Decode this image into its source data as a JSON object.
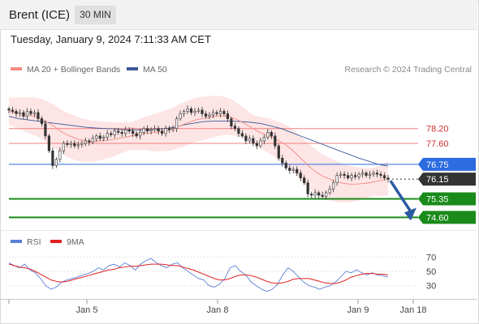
{
  "header": {
    "title": "Brent (ICE)",
    "timeframe": "30 MIN"
  },
  "datetime": "Tuesday, January 9, 2024 7:11:33 AM CET",
  "legend": {
    "ma20": {
      "label": "MA 20 + Bollinger Bands",
      "color": "#f28b82"
    },
    "ma50": {
      "label": "MA 50",
      "color": "#3b5998"
    }
  },
  "credit": "Research © 2024 Trading Central",
  "rsi_legend": {
    "rsi": {
      "label": "RSI",
      "color": "#5b7fd6"
    },
    "ma9": {
      "label": "9MA",
      "color": "#e02020"
    }
  },
  "chart_data": [
    {
      "type": "candlestick",
      "x_ticks": [
        "Jan 5",
        "Jan 8",
        "Jan 9",
        "Jan 18"
      ],
      "ylim": [
        74.35,
        79.8
      ],
      "last_price": 76.15,
      "levels": [
        {
          "label": "78.20",
          "value": 78.2,
          "kind": "resistance",
          "color": "#f08080"
        },
        {
          "label": "77.60",
          "value": 77.6,
          "kind": "resistance",
          "color": "#f08080"
        },
        {
          "label": "76.75",
          "value": 76.75,
          "kind": "pivot",
          "color": "#2c6be0"
        },
        {
          "label": "76.15",
          "value": 76.15,
          "kind": "last",
          "color": "#333333"
        },
        {
          "label": "75.35",
          "value": 75.35,
          "kind": "support",
          "color": "#1a8a1a"
        },
        {
          "label": "74.60",
          "value": 74.6,
          "kind": "support",
          "color": "#1a8a1a"
        }
      ],
      "forecast_arrow": {
        "from": 76.15,
        "to": 74.6,
        "color": "#2a5aa0"
      },
      "price_series": [
        78.95,
        78.9,
        78.8,
        78.85,
        78.7,
        78.9,
        78.8,
        78.85,
        78.6,
        78.4,
        77.9,
        77.3,
        76.7,
        76.95,
        77.3,
        77.6,
        77.55,
        77.6,
        77.5,
        77.55,
        77.6,
        77.7,
        77.65,
        77.8,
        77.9,
        77.8,
        77.85,
        78.0,
        77.95,
        78.1,
        78.05,
        78.0,
        78.15,
        78.1,
        78.0,
        77.9,
        78.05,
        78.2,
        78.1,
        78.15,
        78.2,
        78.1,
        78.0,
        78.2,
        78.15,
        78.2,
        78.6,
        78.8,
        78.9,
        79.0,
        78.85,
        78.9,
        78.95,
        78.8,
        78.7,
        78.75,
        78.85,
        78.8,
        78.9,
        78.8,
        78.6,
        78.3,
        78.2,
        78.0,
        77.9,
        77.7,
        77.8,
        77.6,
        77.5,
        77.7,
        77.85,
        78.05,
        77.9,
        77.5,
        77.0,
        76.8,
        76.6,
        76.5,
        76.55,
        76.4,
        76.2,
        76.0,
        75.55,
        75.5,
        75.6,
        75.5,
        75.45,
        75.6,
        75.75,
        76.0,
        76.3,
        76.35,
        76.3,
        76.2,
        76.3,
        76.25,
        76.35,
        76.4,
        76.3,
        76.35,
        76.4,
        76.35,
        76.3,
        76.2,
        76.15
      ],
      "ma20_series": [
        78.9,
        78.85,
        78.8,
        78.75,
        78.7,
        78.6,
        78.45,
        78.3,
        78.1,
        77.95,
        77.85,
        77.75,
        77.7,
        77.68,
        77.7,
        77.72,
        77.75,
        77.8,
        77.85,
        77.9,
        77.95,
        78.0,
        78.02,
        78.05,
        78.1,
        78.15,
        78.25,
        78.35,
        78.45,
        78.55,
        78.6,
        78.65,
        78.7,
        78.72,
        78.7,
        78.62,
        78.5,
        78.35,
        78.2,
        78.05,
        77.95,
        77.85,
        77.7,
        77.55,
        77.35,
        77.1,
        76.85,
        76.6,
        76.4,
        76.25,
        76.15,
        76.05,
        75.98,
        75.95,
        75.95,
        75.97,
        76.0,
        76.05,
        76.1,
        76.18
      ],
      "ma50_series": [
        78.7,
        78.6,
        78.55,
        78.5,
        78.45,
        78.4,
        78.35,
        78.3,
        78.25,
        78.22,
        78.2,
        78.18,
        78.15,
        78.15,
        78.15,
        78.17,
        78.2,
        78.25,
        78.35,
        78.42,
        78.48,
        78.5,
        78.5,
        78.5,
        78.48,
        78.45,
        78.4,
        78.3,
        78.2,
        78.05,
        77.9,
        77.75,
        77.6,
        77.45,
        77.3,
        77.15,
        77.0,
        76.88,
        76.75,
        76.68
      ],
      "bollinger": {
        "upper_peak": 79.15,
        "lower_trough": 75.0
      }
    },
    {
      "type": "line",
      "name_rsi": "RSI",
      "name_ma": "9MA",
      "y_ticks": [
        "70",
        "50",
        "30"
      ],
      "ylim": [
        15,
        85
      ],
      "rsi_series": [
        62,
        58,
        55,
        60,
        52,
        48,
        40,
        30,
        25,
        28,
        35,
        38,
        40,
        42,
        45,
        47,
        50,
        55,
        52,
        58,
        60,
        56,
        62,
        58,
        52,
        60,
        65,
        68,
        62,
        58,
        55,
        60,
        62,
        55,
        50,
        45,
        40,
        38,
        30,
        28,
        32,
        40,
        55,
        58,
        50,
        45,
        35,
        30,
        25,
        22,
        25,
        32,
        45,
        55,
        50,
        42,
        35,
        30,
        28,
        25,
        28,
        30,
        35,
        42,
        50,
        48,
        52,
        48,
        45,
        48,
        45,
        44,
        42
      ],
      "ma9_series": [
        60,
        58,
        56,
        55,
        53,
        50,
        46,
        42,
        38,
        36,
        35,
        36,
        38,
        40,
        42,
        44,
        46,
        48,
        50,
        52,
        53,
        55,
        56,
        57,
        57,
        58,
        59,
        60,
        60,
        60,
        59,
        58,
        58,
        56,
        54,
        52,
        49,
        46,
        43,
        40,
        38,
        38,
        40,
        43,
        45,
        45,
        44,
        42,
        39,
        36,
        34,
        33,
        34,
        36,
        39,
        40,
        40,
        40,
        38,
        36,
        34,
        33,
        33,
        35,
        38,
        42,
        44,
        46,
        47,
        47,
        46,
        46,
        45
      ]
    }
  ]
}
